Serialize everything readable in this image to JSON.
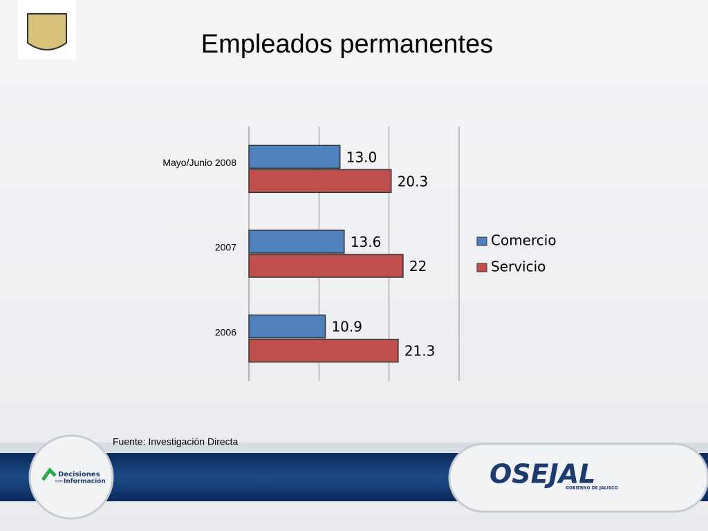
{
  "chart_data": {
    "type": "bar",
    "orientation": "horizontal",
    "title": "Empleados permanentes",
    "categories": [
      "Mayo/Junio 2008",
      "2007",
      "2006"
    ],
    "series": [
      {
        "name": "Comercio",
        "color": "#4f81bd",
        "values": [
          13.0,
          13.6,
          10.9
        ],
        "value_labels": [
          "13.0",
          "13.6",
          "10.9"
        ]
      },
      {
        "name": "Servicio",
        "color": "#c0504d",
        "values": [
          20.3,
          22,
          21.3
        ]
      }
    ],
    "xlim": [
      0,
      30
    ],
    "xticks": [
      0,
      10,
      20,
      30
    ],
    "grid": true,
    "legend": "right"
  },
  "source": "Fuente: Investigación Directa",
  "logos": {
    "left": [
      "Decisiones",
      "con",
      "Información"
    ],
    "right": [
      "OSEJAL",
      "GOBIERNO DE JALISCO"
    ]
  }
}
